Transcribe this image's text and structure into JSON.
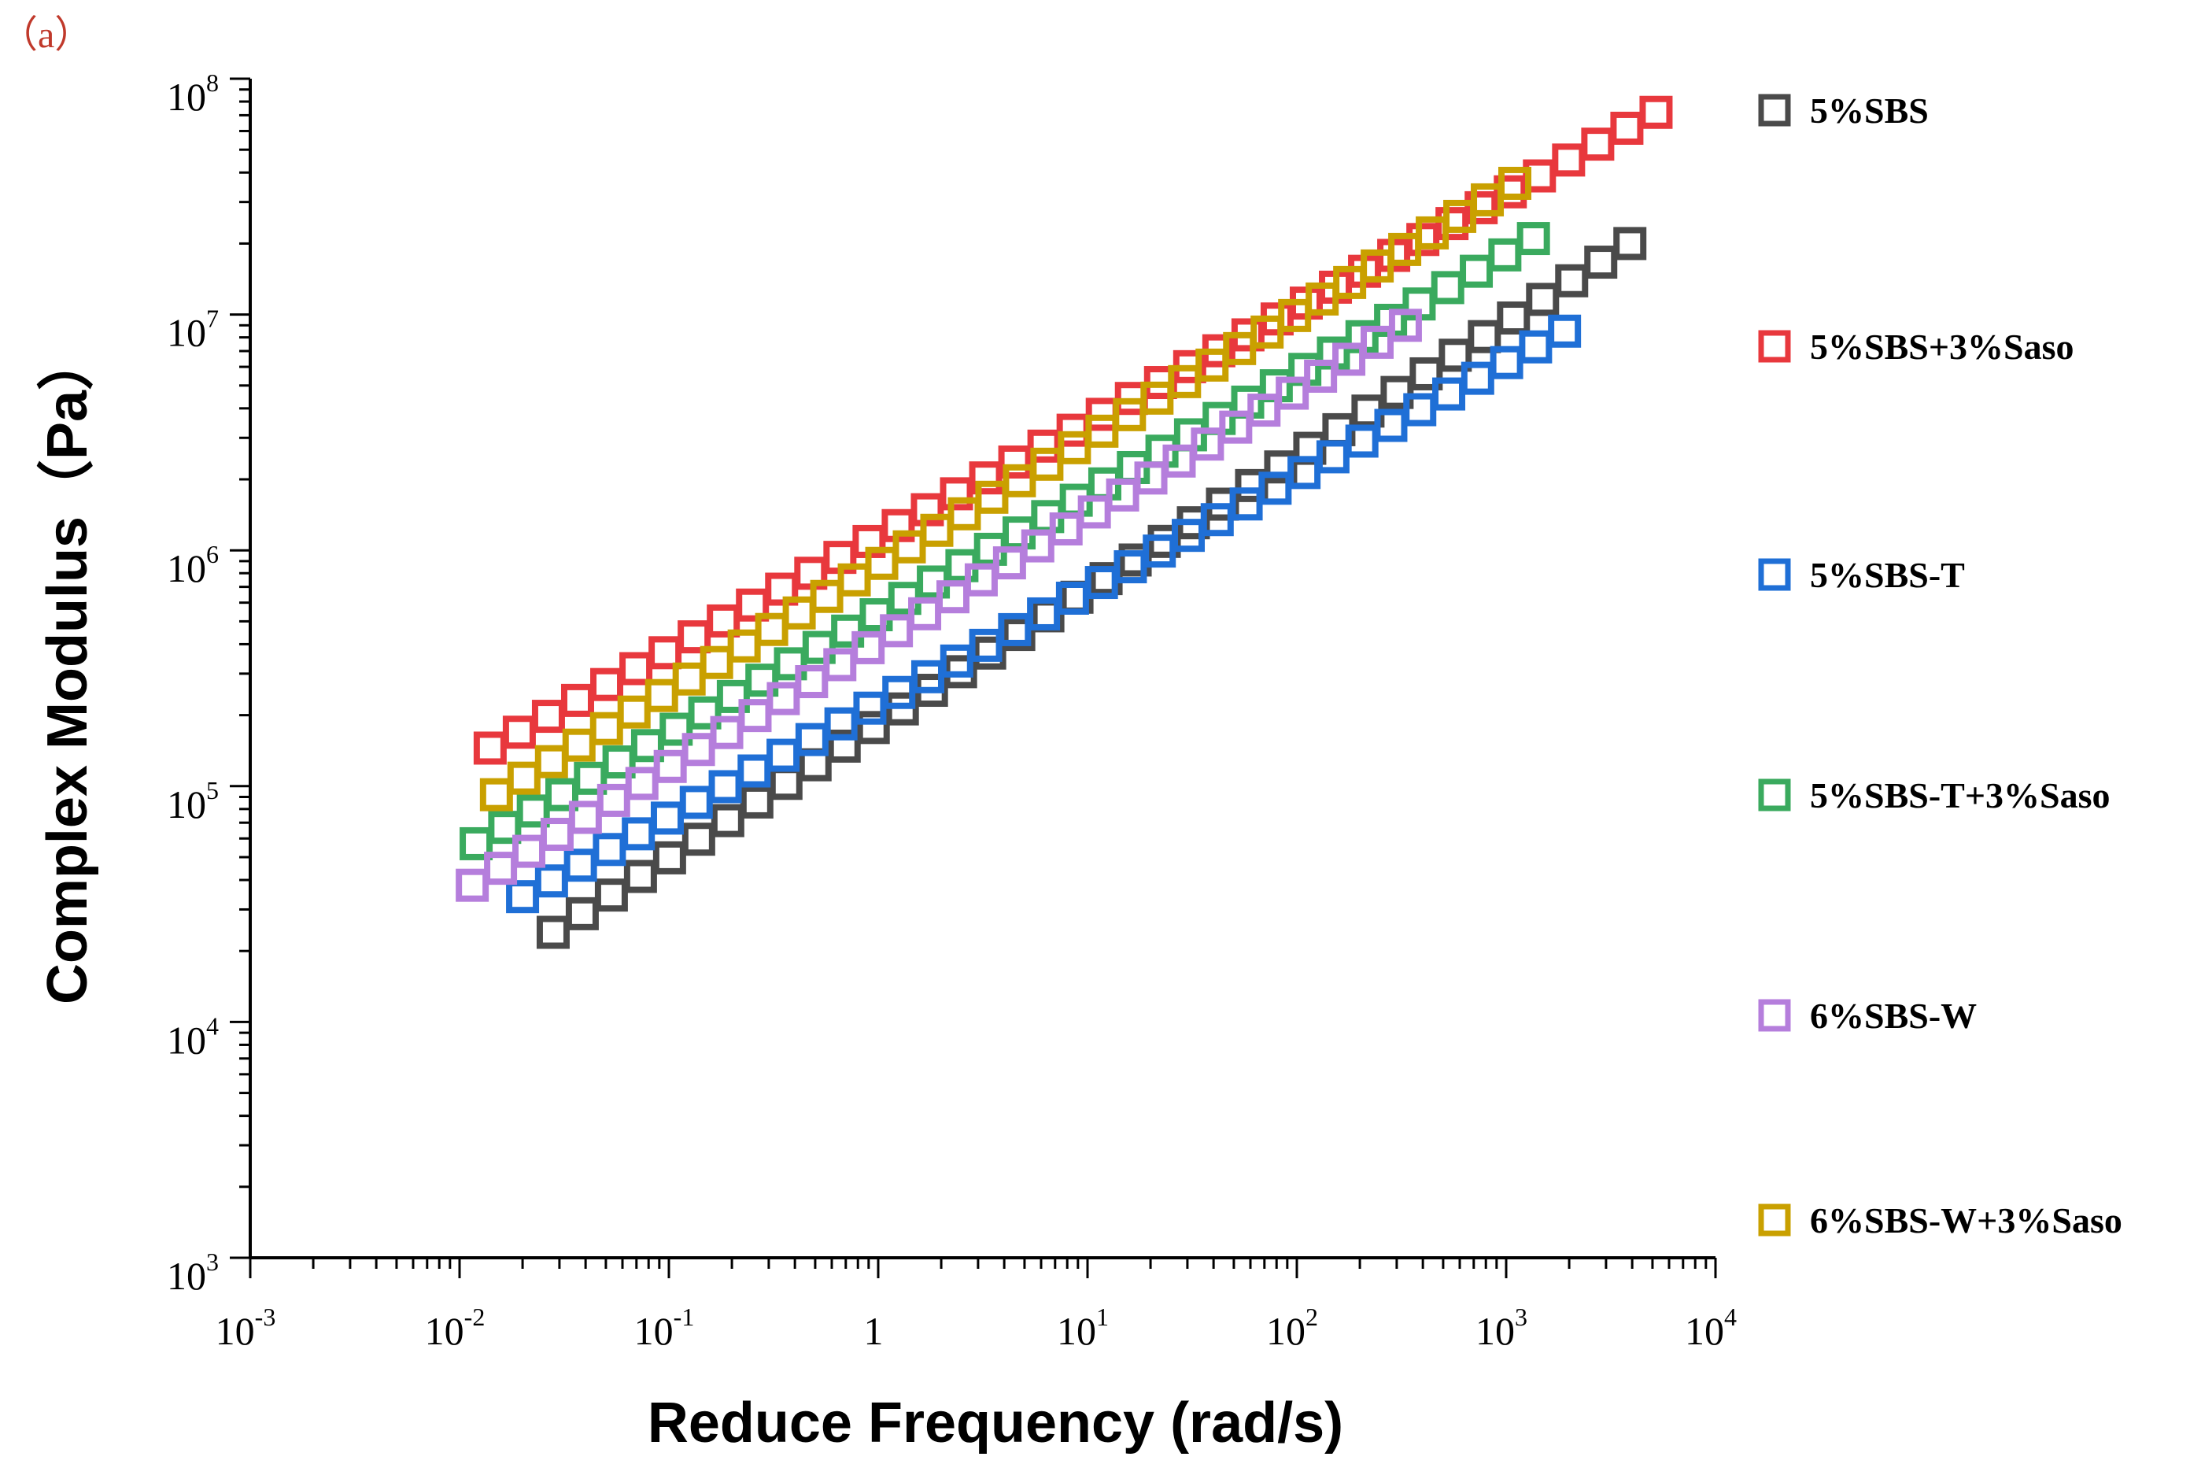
{
  "panel_label": "（a）",
  "chart_data": {
    "type": "scatter",
    "title": "",
    "xlabel": "Reduce Frequency (rad/s)",
    "ylabel": "Complex Modulus（Pa）",
    "xscale": "log",
    "yscale": "log",
    "xlim": [
      0.001,
      10000
    ],
    "ylim": [
      1000,
      100000000
    ],
    "x_ticks": [
      {
        "base": "10",
        "exp": "-3",
        "value": 0.001
      },
      {
        "base": "10",
        "exp": "-2",
        "value": 0.01
      },
      {
        "base": "10",
        "exp": "-1",
        "value": 0.1
      },
      {
        "base": "1",
        "exp": "",
        "value": 1
      },
      {
        "base": "10",
        "exp": "1",
        "value": 10
      },
      {
        "base": "10",
        "exp": "2",
        "value": 100
      },
      {
        "base": "10",
        "exp": "3",
        "value": 1000
      },
      {
        "base": "10",
        "exp": "4",
        "value": 10000
      }
    ],
    "y_ticks": [
      {
        "base": "10",
        "exp": "3",
        "value": 1000
      },
      {
        "base": "10",
        "exp": "4",
        "value": 10000
      },
      {
        "base": "10",
        "exp": "5",
        "value": 100000
      },
      {
        "base": "10",
        "exp": "6",
        "value": 1000000
      },
      {
        "base": "10",
        "exp": "7",
        "value": 10000000
      },
      {
        "base": "10",
        "exp": "8",
        "value": 100000000
      }
    ],
    "legend_position": "right",
    "marker": "hollow-square",
    "series": [
      {
        "name": "5%SBS",
        "color": "#4a4a4a",
        "x_start": 0.028,
        "x_end": 3900,
        "y_start": 24000,
        "y_end": 20000000,
        "n": 38
      },
      {
        "name": "5%SBS+3%Saso",
        "color": "#e8383d",
        "x_start": 0.014,
        "x_end": 5200,
        "y_start": 145000,
        "y_end": 72000000,
        "n": 41
      },
      {
        "name": "5%SBS-T",
        "color": "#1f6fd6",
        "x_start": 0.02,
        "x_end": 1900,
        "y_start": 34000,
        "y_end": 8500000,
        "n": 37
      },
      {
        "name": "5%SBS-T+3%Saso",
        "color": "#3aaa5e",
        "x_start": 0.012,
        "x_end": 1350,
        "y_start": 57000,
        "y_end": 21000000,
        "n": 38
      },
      {
        "name": "6%SBS-W",
        "color": "#b57edc",
        "x_start": 0.0115,
        "x_end": 330,
        "y_start": 38000,
        "y_end": 9000000,
        "n": 34
      },
      {
        "name": "6%SBS-W+3%Saso",
        "color": "#c9a000",
        "x_start": 0.015,
        "x_end": 1100,
        "y_start": 92000,
        "y_end": 36000000,
        "n": 38
      }
    ]
  }
}
